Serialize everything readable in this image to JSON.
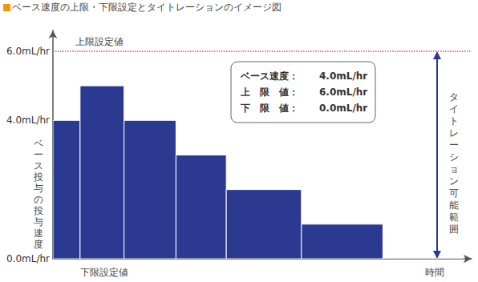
{
  "chart_data": {
    "type": "bar",
    "title": "ベース速度の上限・下限設定とタイトレーションのイメージ図",
    "y_label": "ベース投与の投与速度",
    "x_label": "時間",
    "bins": [
      0,
      34,
      89,
      154,
      217,
      311,
      413,
      514
    ],
    "values": [
      4,
      5,
      4,
      3,
      2,
      1,
      0
    ],
    "color": "#2b3990",
    "xlim": [
      0,
      524
    ],
    "ylim": [
      0,
      6.6
    ],
    "yticks": [
      {
        "value": 0,
        "label": "0.0mL/hr"
      },
      {
        "value": 4,
        "label": "4.0mL/hr"
      },
      {
        "value": 6,
        "label": "6.0mL/hr"
      }
    ],
    "grid": false,
    "tick_labels": "y",
    "upper_limit": {
      "value": 6,
      "label": "上限設定値",
      "color": "#e8505b"
    },
    "lower_limit": {
      "value": 0,
      "label": "下限設定値"
    },
    "range_label": "タイトレーション可能範囲",
    "info_box": [
      [
        "ベース速度：",
        "4.0mL/hr"
      ],
      [
        "上　限　値：",
        "6.0mL/hr"
      ],
      [
        "下　限　値：",
        "0.0mL/hr"
      ]
    ]
  }
}
